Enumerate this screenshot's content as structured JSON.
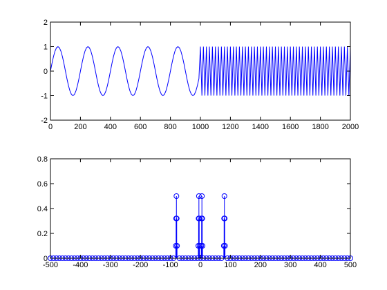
{
  "chart_data": [
    {
      "type": "line",
      "color": "#0000ff",
      "x": [
        0,
        10,
        20,
        30,
        40,
        50,
        60,
        70,
        80,
        90,
        100,
        110,
        120,
        130,
        140,
        150,
        160,
        170,
        180,
        190,
        200,
        210,
        220,
        230,
        240,
        250,
        260,
        270,
        280,
        290,
        300,
        310,
        320,
        330,
        340,
        350,
        360,
        370,
        380,
        390,
        400,
        410,
        420,
        430,
        440,
        450,
        460,
        470,
        480,
        490,
        500,
        510,
        520,
        530,
        540,
        550,
        560,
        570,
        580,
        590,
        600,
        610,
        620,
        630,
        640,
        650,
        660,
        670,
        680,
        690,
        700,
        710,
        720,
        730,
        740,
        750,
        760,
        770,
        780,
        790,
        800,
        810,
        820,
        830,
        840,
        850,
        860,
        870,
        880,
        890,
        900,
        910,
        920,
        930,
        940,
        950,
        960,
        970,
        980,
        990,
        1000,
        1010,
        1020,
        1030,
        1040,
        1050,
        1060,
        1070,
        1080,
        1090,
        1100,
        1110,
        1120,
        1130,
        1140,
        1150,
        1160,
        1170,
        1180,
        1190,
        1200,
        1210,
        1220,
        1230,
        1240,
        1250,
        1260,
        1270,
        1280,
        1290,
        1300,
        1310,
        1320,
        1330,
        1340,
        1350,
        1360,
        1370,
        1380,
        1390,
        1400,
        1410,
        1420,
        1430,
        1440,
        1450,
        1460,
        1470,
        1480,
        1490,
        1500,
        1510,
        1520,
        1530,
        1540,
        1550,
        1560,
        1570,
        1580,
        1590,
        1600,
        1610,
        1620,
        1630,
        1640,
        1650,
        1660,
        1670,
        1680,
        1690,
        1700,
        1710,
        1720,
        1730,
        1740,
        1750,
        1760,
        1770,
        1780,
        1790,
        1800,
        1810,
        1820,
        1830,
        1840,
        1850,
        1860,
        1870,
        1880,
        1890,
        1900,
        1910,
        1920,
        1930,
        1940,
        1950,
        1960,
        1970,
        1980,
        1990,
        2000
      ],
      "values": [
        0,
        0.309,
        0.588,
        0.809,
        0.951,
        1,
        0.951,
        0.809,
        0.588,
        0.309,
        0,
        -0.309,
        -0.588,
        -0.809,
        -0.951,
        -1,
        -0.951,
        -0.809,
        -0.588,
        -0.309,
        0,
        0.309,
        0.588,
        0.809,
        0.951,
        1,
        0.951,
        0.809,
        0.588,
        0.309,
        0,
        -0.309,
        -0.588,
        -0.809,
        -0.951,
        -1,
        -0.951,
        -0.809,
        -0.588,
        -0.309,
        0,
        0.309,
        0.588,
        0.809,
        0.951,
        1,
        0.951,
        0.809,
        0.588,
        0.309,
        0,
        -0.309,
        -0.588,
        -0.809,
        -0.951,
        -1,
        -0.951,
        -0.809,
        -0.588,
        -0.309,
        0,
        0.309,
        0.588,
        0.809,
        0.951,
        1,
        0.951,
        0.809,
        0.588,
        0.309,
        0,
        -0.309,
        -0.588,
        -0.809,
        -0.951,
        -1,
        -0.951,
        -0.809,
        -0.588,
        -0.309,
        0,
        0.309,
        0.588,
        0.809,
        0.951,
        1,
        0.951,
        0.809,
        0.588,
        0.309,
        0,
        -0.309,
        -0.588,
        -0.809,
        -0.951,
        -1,
        -0.951,
        -0.809,
        -0.588,
        -0.309,
        1,
        -1,
        1,
        -1,
        1,
        -1,
        1,
        -1,
        1,
        -1,
        1,
        -1,
        1,
        -1,
        1,
        -1,
        1,
        -1,
        1,
        -1,
        1,
        -1,
        1,
        -1,
        1,
        -1,
        1,
        -1,
        1,
        -1,
        1,
        -1,
        1,
        -1,
        1,
        -1,
        1,
        -1,
        1,
        -1,
        1,
        -1,
        1,
        -1,
        1,
        -1,
        1,
        -1,
        1,
        -1,
        1,
        -1,
        1,
        -1,
        1,
        -1,
        1,
        -1,
        1,
        -1,
        1,
        -1,
        1,
        -1,
        1,
        -1,
        1,
        -1,
        1,
        -1,
        1,
        -1,
        1,
        -1,
        1,
        -1,
        1,
        -1,
        1,
        -1,
        1,
        -1,
        1,
        -1,
        1,
        -1,
        1,
        -1,
        1,
        -1,
        1,
        -1,
        1,
        -1,
        1,
        -1,
        1,
        -1,
        1,
        -1,
        1
      ],
      "xlim": [
        0,
        2000
      ],
      "xticks": [
        0,
        200,
        400,
        600,
        800,
        1000,
        1200,
        1400,
        1600,
        1800,
        2000
      ],
      "ylim": [
        -2,
        2
      ],
      "yticks": [
        -2,
        -1,
        0,
        1,
        2
      ]
    },
    {
      "type": "stem",
      "color": "#0000ff",
      "x": [
        -500,
        -490,
        -480,
        -470,
        -460,
        -450,
        -440,
        -430,
        -420,
        -410,
        -400,
        -390,
        -380,
        -370,
        -360,
        -350,
        -340,
        -330,
        -320,
        -310,
        -300,
        -290,
        -280,
        -270,
        -260,
        -250,
        -240,
        -230,
        -220,
        -210,
        -200,
        -190,
        -180,
        -170,
        -160,
        -150,
        -140,
        -130,
        -120,
        -110,
        -100,
        -90,
        -82,
        -81,
        -80,
        -79,
        -78,
        -70,
        -60,
        -50,
        -40,
        -30,
        -20,
        -10,
        -7,
        -6,
        -5,
        -4,
        -3,
        0,
        3,
        4,
        5,
        6,
        7,
        10,
        20,
        30,
        40,
        50,
        60,
        70,
        78,
        79,
        80,
        81,
        82,
        90,
        100,
        110,
        120,
        130,
        140,
        150,
        160,
        170,
        180,
        190,
        200,
        210,
        220,
        230,
        240,
        250,
        260,
        270,
        280,
        290,
        300,
        310,
        320,
        330,
        340,
        350,
        360,
        370,
        380,
        390,
        400,
        410,
        420,
        430,
        440,
        450,
        460,
        470,
        480,
        490,
        500
      ],
      "values": [
        0,
        0,
        0,
        0,
        0,
        0,
        0,
        0,
        0,
        0,
        0,
        0,
        0,
        0,
        0,
        0,
        0,
        0,
        0,
        0,
        0,
        0,
        0,
        0,
        0,
        0,
        0,
        0,
        0,
        0,
        0,
        0,
        0,
        0,
        0,
        0,
        0,
        0,
        0,
        0,
        0,
        0,
        0.1,
        0.32,
        0.5,
        0.32,
        0.1,
        0,
        0,
        0,
        0,
        0,
        0,
        0,
        0.1,
        0.32,
        0.5,
        0.32,
        0.1,
        0,
        0.1,
        0.32,
        0.5,
        0.32,
        0.1,
        0,
        0,
        0,
        0,
        0,
        0,
        0,
        0.1,
        0.32,
        0.5,
        0.32,
        0.1,
        0,
        0,
        0,
        0,
        0,
        0,
        0,
        0,
        0,
        0,
        0,
        0,
        0,
        0,
        0,
        0,
        0,
        0,
        0,
        0,
        0,
        0,
        0,
        0,
        0,
        0,
        0,
        0,
        0,
        0,
        0,
        0,
        0,
        0,
        0,
        0,
        0,
        0,
        0,
        0,
        0,
        0
      ],
      "xlim": [
        -500,
        500
      ],
      "xticks": [
        -500,
        -400,
        -300,
        -200,
        -100,
        0,
        100,
        200,
        300,
        400,
        500
      ],
      "ylim": [
        0,
        0.8
      ],
      "yticks": [
        0,
        0.2,
        0.4,
        0.6,
        0.8
      ]
    }
  ]
}
